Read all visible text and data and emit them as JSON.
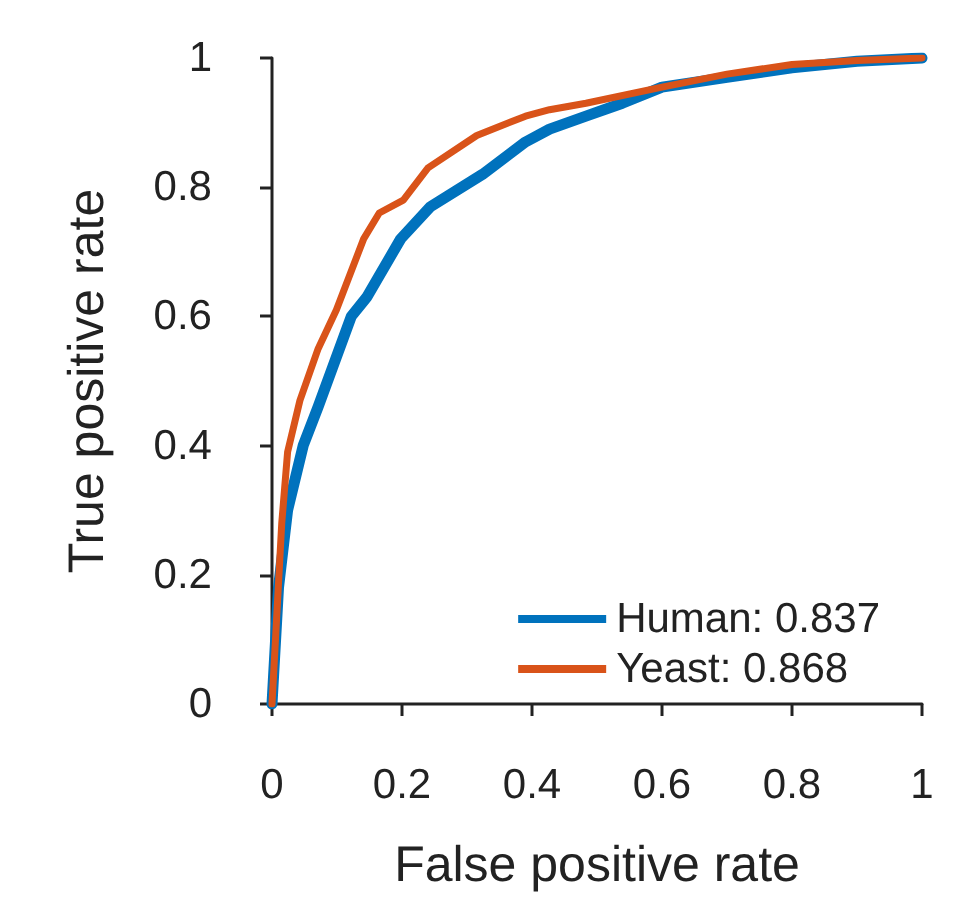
{
  "chart_data": {
    "type": "line",
    "xlabel": "False positive rate",
    "ylabel": "True positive rate",
    "xlim": [
      0,
      1
    ],
    "ylim": [
      0,
      1
    ],
    "xticks": [
      0,
      0.2,
      0.4,
      0.6,
      0.8,
      1
    ],
    "yticks": [
      0,
      0.2,
      0.4,
      0.6,
      0.8,
      1
    ],
    "grid": false,
    "legend": "bottom right",
    "marker": "none",
    "line_style": "solid",
    "series": [
      {
        "name": "Human: 0.837",
        "color": "#0072bd",
        "x": [
          0,
          0.01,
          0.024,
          0.048,
          0.071,
          0.122,
          0.146,
          0.198,
          0.244,
          0.324,
          0.39,
          0.427,
          0.483,
          0.539,
          0.6,
          0.7,
          0.8,
          0.9,
          1
        ],
        "values": [
          0,
          0.18,
          0.3,
          0.4,
          0.46,
          0.6,
          0.63,
          0.72,
          0.77,
          0.82,
          0.87,
          0.89,
          0.91,
          0.93,
          0.955,
          0.97,
          0.985,
          0.995,
          1
        ]
      },
      {
        "name": "Yeast: 0.868",
        "color": "#d95319",
        "x": [
          0,
          0.015,
          0.024,
          0.043,
          0.071,
          0.099,
          0.141,
          0.165,
          0.202,
          0.24,
          0.315,
          0.39,
          0.427,
          0.483,
          0.6,
          0.7,
          0.8,
          0.9,
          1
        ],
        "values": [
          0,
          0.28,
          0.39,
          0.47,
          0.55,
          0.61,
          0.72,
          0.76,
          0.78,
          0.83,
          0.88,
          0.91,
          0.92,
          0.93,
          0.955,
          0.975,
          0.99,
          0.996,
          1
        ]
      }
    ]
  }
}
